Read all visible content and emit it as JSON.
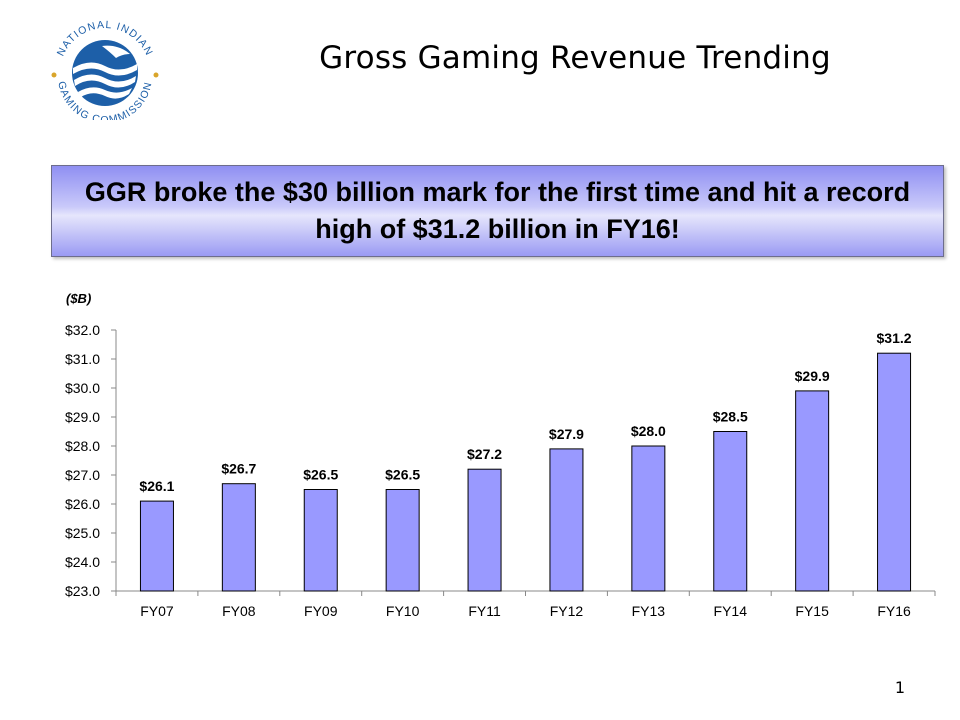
{
  "slide": {
    "title": "Gross Gaming Revenue Trending",
    "callout": "GGR broke the $30 billion mark for the first time and hit a record high of $31.2 billion in FY16!",
    "page_number": "1"
  },
  "logo": {
    "name": "logo",
    "ring_text_top": "NATIONAL INDIAN",
    "ring_text_bottom": "GAMING COMMISSION"
  },
  "colors": {
    "bar_fill": "#9999ff",
    "bar_stroke": "#000000",
    "callout_blue": "#8f8ff2",
    "logo_blue": "#1d5fa8",
    "logo_gold": "#d9a52b"
  },
  "chart_data": {
    "type": "bar",
    "title": "",
    "xlabel": "",
    "ylabel": "($B)",
    "categories": [
      "FY07",
      "FY08",
      "FY09",
      "FY10",
      "FY11",
      "FY12",
      "FY13",
      "FY14",
      "FY15",
      "FY16"
    ],
    "values": [
      26.1,
      26.7,
      26.5,
      26.5,
      27.2,
      27.9,
      28.0,
      28.5,
      29.9,
      31.2
    ],
    "value_labels": [
      "$26.1",
      "$26.7",
      "$26.5",
      "$26.5",
      "$27.2",
      "$27.9",
      "$28.0",
      "$28.5",
      "$29.9",
      "$31.2"
    ],
    "ylim": [
      23.0,
      32.0
    ],
    "yticks": [
      23.0,
      24.0,
      25.0,
      26.0,
      27.0,
      28.0,
      29.0,
      30.0,
      31.0,
      32.0
    ],
    "ytick_labels": [
      "$23.0",
      "$24.0",
      "$25.0",
      "$26.0",
      "$27.0",
      "$28.0",
      "$29.0",
      "$30.0",
      "$31.0",
      "$32.0"
    ],
    "grid": false,
    "legend": "none"
  }
}
